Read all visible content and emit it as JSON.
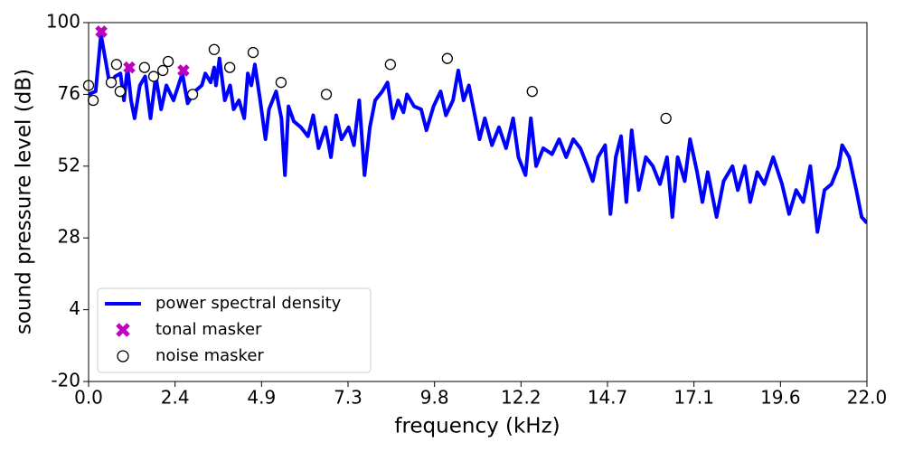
{
  "chart_data": {
    "type": "line",
    "xlabel": "frequency (kHz)",
    "ylabel": "sound pressure level (dB)",
    "xlim": [
      0,
      22
    ],
    "ylim": [
      -20,
      100
    ],
    "xticks": [
      {
        "value": 0,
        "label": "0.0"
      },
      {
        "value": 2.444,
        "label": "2.4"
      },
      {
        "value": 4.889,
        "label": "4.9"
      },
      {
        "value": 7.333,
        "label": "7.3"
      },
      {
        "value": 9.778,
        "label": "9.8"
      },
      {
        "value": 12.222,
        "label": "12.2"
      },
      {
        "value": 14.667,
        "label": "14.7"
      },
      {
        "value": 17.111,
        "label": "17.1"
      },
      {
        "value": 19.556,
        "label": "19.6"
      },
      {
        "value": 22,
        "label": "22.0"
      }
    ],
    "yticks": [
      -20,
      4,
      28,
      52,
      76,
      100
    ],
    "legend": "lower left",
    "series": [
      {
        "name": "power spectral density",
        "type": "line",
        "color": "#0000ff",
        "x": [
          0,
          0.2,
          0.35,
          0.5,
          0.6,
          0.75,
          0.9,
          1.0,
          1.1,
          1.2,
          1.3,
          1.45,
          1.6,
          1.75,
          1.9,
          2.05,
          2.2,
          2.4,
          2.65,
          2.8,
          3.0,
          3.2,
          3.3,
          3.45,
          3.55,
          3.6,
          3.7,
          3.85,
          4.0,
          4.1,
          4.25,
          4.4,
          4.5,
          4.6,
          4.7,
          4.85,
          5.0,
          5.1,
          5.3,
          5.45,
          5.55,
          5.65,
          5.8,
          6.0,
          6.2,
          6.35,
          6.5,
          6.7,
          6.85,
          7.0,
          7.15,
          7.35,
          7.5,
          7.65,
          7.8,
          7.95,
          8.1,
          8.3,
          8.45,
          8.6,
          8.75,
          8.9,
          9.0,
          9.2,
          9.4,
          9.55,
          9.75,
          9.95,
          10.1,
          10.3,
          10.45,
          10.6,
          10.75,
          10.9,
          11.05,
          11.2,
          11.4,
          11.6,
          11.8,
          12.0,
          12.15,
          12.35,
          12.5,
          12.65,
          12.85,
          13.1,
          13.3,
          13.5,
          13.7,
          13.9,
          14.1,
          14.25,
          14.4,
          14.6,
          14.75,
          14.9,
          15.05,
          15.2,
          15.35,
          15.55,
          15.75,
          15.95,
          16.15,
          16.35,
          16.5,
          16.65,
          16.85,
          17.0,
          17.2,
          17.35,
          17.5,
          17.75,
          17.95,
          18.2,
          18.35,
          18.55,
          18.7,
          18.9,
          19.1,
          19.35,
          19.6,
          19.8,
          20.0,
          20.2,
          20.4,
          20.6,
          20.8,
          21.0,
          21.2,
          21.3,
          21.5,
          21.7,
          21.85,
          22.0
        ],
        "values": [
          76,
          77,
          96,
          86,
          79,
          82,
          83,
          74,
          85,
          74,
          68,
          79,
          82,
          68,
          82,
          71,
          79,
          74,
          83,
          73,
          77,
          79,
          83,
          80,
          85,
          79,
          88,
          74,
          79,
          71,
          74,
          68,
          83,
          79,
          86,
          74,
          61,
          71,
          77,
          68,
          49,
          72,
          67,
          65,
          62,
          69,
          58,
          65,
          55,
          69,
          61,
          65,
          59,
          74,
          49,
          65,
          74,
          77,
          80,
          68,
          74,
          70,
          76,
          72,
          71,
          64,
          72,
          77,
          69,
          74,
          84,
          74,
          79,
          70,
          61,
          68,
          59,
          65,
          58,
          68,
          55,
          49,
          68,
          52,
          58,
          56,
          61,
          55,
          61,
          58,
          52,
          47,
          55,
          59,
          36,
          55,
          62,
          40,
          64,
          44,
          55,
          52,
          46,
          55,
          35,
          55,
          47,
          61,
          50,
          40,
          50,
          35,
          47,
          52,
          44,
          52,
          40,
          50,
          46,
          55,
          46,
          36,
          44,
          40,
          52,
          30,
          44,
          46,
          52,
          59,
          55,
          44,
          35,
          33
        ]
      },
      {
        "name": "tonal masker",
        "type": "scatter",
        "marker": "x",
        "color": "#bf00bf",
        "x": [
          0.36,
          1.15,
          2.68
        ],
        "values": [
          97,
          85,
          84
        ]
      },
      {
        "name": "noise masker",
        "type": "scatter",
        "marker": "o",
        "color": "#000000",
        "x": [
          0,
          0.13,
          0.64,
          0.79,
          0.89,
          1.58,
          1.84,
          2.1,
          2.25,
          2.94,
          3.55,
          3.99,
          4.65,
          5.44,
          6.72,
          8.53,
          10.14,
          12.54,
          16.32
        ],
        "values": [
          79,
          74,
          80,
          86,
          77,
          85,
          82,
          84,
          87,
          76,
          91,
          85,
          90,
          80,
          76,
          86,
          88,
          77,
          68
        ]
      }
    ]
  }
}
